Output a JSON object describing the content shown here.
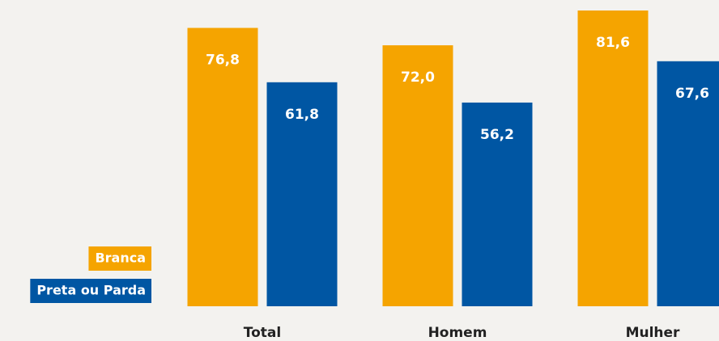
{
  "chart_data": {
    "type": "bar",
    "categories": [
      "Total",
      "Homem",
      "Mulher"
    ],
    "series": [
      {
        "name": "Branca",
        "color": "#f5a400",
        "values": [
          76.8,
          72.0,
          81.6
        ],
        "value_labels": [
          "76,8",
          "72,0",
          "81,6"
        ]
      },
      {
        "name": "Preta ou Parda",
        "color": "#0056a3",
        "values": [
          61.8,
          56.2,
          67.6
        ],
        "value_labels": [
          "61,8",
          "56,2",
          "67,6"
        ]
      }
    ],
    "legend": "lower left"
  }
}
